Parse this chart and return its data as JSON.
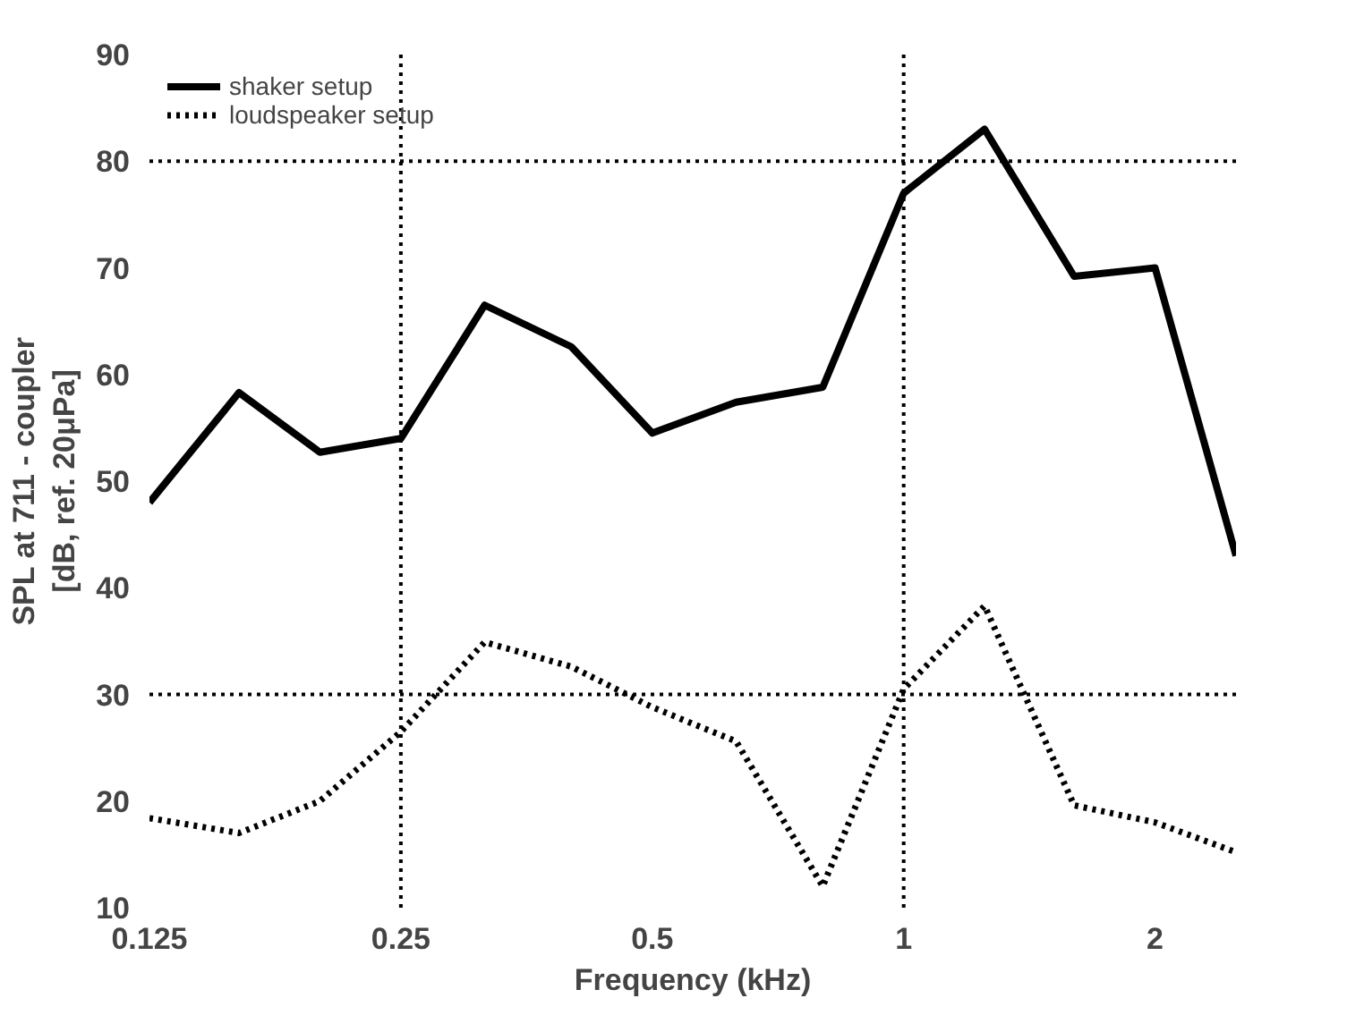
{
  "chart_data": {
    "type": "line",
    "xlabel": "Frequency (kHz)",
    "ylabel": "SPL at 711 - coupler\n[dB, ref. 20μPa]",
    "x": [
      0.125,
      0.16,
      0.2,
      0.25,
      0.315,
      0.4,
      0.5,
      0.63,
      0.8,
      1,
      1.25,
      1.6,
      2,
      2.5
    ],
    "series": [
      {
        "name": "shaker setup",
        "color": "#000000",
        "line_style": "solid",
        "values": [
          48,
          58.3,
          52.7,
          54,
          66.5,
          62.6,
          54.5,
          57.4,
          58.8,
          77,
          83,
          69.2,
          70,
          43
        ]
      },
      {
        "name": "loudspeaker setup",
        "color": "#000000",
        "line_style": "dotted",
        "values": [
          18.4,
          17,
          20,
          26.5,
          34.9,
          32.6,
          28.8,
          25.6,
          12,
          30.5,
          38.3,
          19.6,
          18,
          15.2
        ]
      }
    ],
    "log": "x",
    "xlim": [
      0.125,
      2.5
    ],
    "xticks": [
      0.125,
      0.25,
      0.5,
      1,
      2
    ],
    "ylim": [
      10,
      90
    ],
    "yticks": [
      10,
      20,
      30,
      40,
      50,
      60,
      70,
      80,
      90
    ],
    "grid": false,
    "legend": "top left",
    "marker": "none",
    "ref_lines": [
      {
        "axis": "x",
        "value": 0.25,
        "line_style": "dotted"
      },
      {
        "axis": "x",
        "value": 1,
        "line_style": "dotted"
      },
      {
        "axis": "y",
        "value": 30,
        "line_style": "dotted"
      },
      {
        "axis": "y",
        "value": 80,
        "line_style": "dotted"
      }
    ]
  }
}
